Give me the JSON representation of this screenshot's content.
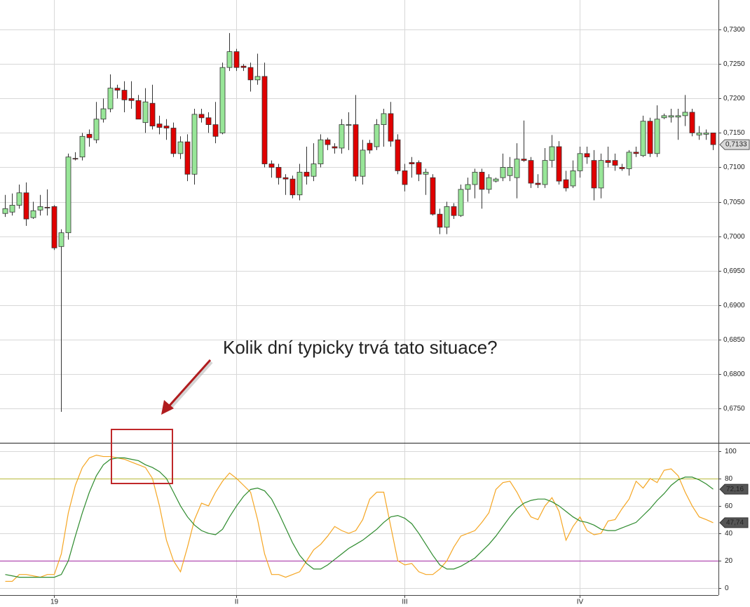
{
  "chart_data": {
    "type": "candlestick",
    "annotation": "Kolik dní typicky trvá tato situace?",
    "categories": [
      null,
      null,
      null,
      null,
      null,
      null,
      null,
      "19",
      null,
      null,
      null,
      null,
      null,
      null,
      null,
      null,
      null,
      null,
      null,
      null,
      null,
      null,
      null,
      null,
      null,
      null,
      null,
      null,
      null,
      null,
      null,
      null,
      null,
      "II",
      null,
      null,
      null,
      null,
      null,
      null,
      null,
      null,
      null,
      null,
      null,
      null,
      null,
      null,
      null,
      null,
      null,
      null,
      null,
      null,
      null,
      null,
      null,
      "III",
      null,
      null,
      null,
      null,
      null,
      null,
      null,
      null,
      null,
      null,
      null,
      null,
      null,
      null,
      null,
      null,
      null,
      null,
      null,
      null,
      null,
      null,
      null,
      null,
      "IV",
      null,
      null,
      null,
      null,
      null,
      null,
      null,
      null,
      null,
      null,
      null,
      null,
      null,
      null,
      null,
      null,
      null,
      null,
      null
    ],
    "open": [
      0.7033,
      0.7035,
      0.7045,
      0.7063,
      0.7027,
      0.7038,
      0.7042,
      0.7043,
      0.6985,
      0.7005,
      0.7113,
      0.7115,
      0.7148,
      0.714,
      0.717,
      0.7185,
      0.7215,
      0.7212,
      0.72,
      0.7197,
      0.7165,
      0.7193,
      0.7163,
      0.716,
      0.7157,
      0.712,
      0.7137,
      0.709,
      0.7177,
      0.7172,
      0.7162,
      0.715,
      0.7245,
      0.7268,
      0.7247,
      0.7245,
      0.7227,
      0.7232,
      0.7105,
      0.71,
      0.7085,
      0.7083,
      0.706,
      0.7093,
      0.7087,
      0.7105,
      0.714,
      0.713,
      0.7128,
      0.7161,
      0.7162,
      0.7087,
      0.7135,
      0.713,
      0.7162,
      0.7178,
      0.714,
      0.7095,
      0.7107,
      0.7107,
      0.709,
      0.7085,
      0.7032,
      0.7013,
      0.7043,
      0.703,
      0.7068,
      0.7075,
      0.7093,
      0.7068,
      0.708,
      0.7085,
      0.7088,
      0.7085,
      0.7112,
      0.711,
      0.7077,
      0.7075,
      0.711,
      0.713,
      0.7082,
      0.7073,
      0.7095,
      0.712,
      0.711,
      0.707,
      0.711,
      0.711,
      0.71,
      0.7098,
      0.7122,
      0.7117,
      0.7167,
      0.712,
      0.7172,
      0.7173,
      0.7173,
      0.7175,
      0.718,
      0.7147,
      0.7148,
      0.715
    ],
    "high": [
      0.706,
      0.7062,
      0.7075,
      0.7078,
      0.705,
      0.706,
      0.7068,
      0.7045,
      0.701,
      0.712,
      0.7122,
      0.715,
      0.7155,
      0.7195,
      0.72,
      0.7235,
      0.722,
      0.7225,
      0.7225,
      0.7205,
      0.7215,
      0.722,
      0.7175,
      0.717,
      0.7165,
      0.7145,
      0.7148,
      0.7185,
      0.7185,
      0.718,
      0.7195,
      0.7252,
      0.7295,
      0.7272,
      0.725,
      0.7252,
      0.7265,
      0.7252,
      0.711,
      0.7105,
      0.709,
      0.7088,
      0.7105,
      0.713,
      0.7135,
      0.7148,
      0.7143,
      0.7135,
      0.717,
      0.718,
      0.7205,
      0.714,
      0.714,
      0.717,
      0.7185,
      0.7195,
      0.7148,
      0.7105,
      0.7115,
      0.711,
      0.7098,
      0.709,
      0.704,
      0.705,
      0.7048,
      0.7075,
      0.7085,
      0.7098,
      0.7098,
      0.709,
      0.7085,
      0.712,
      0.7115,
      0.7135,
      0.7168,
      0.7115,
      0.709,
      0.7128,
      0.7147,
      0.7138,
      0.7095,
      0.711,
      0.713,
      0.713,
      0.7125,
      0.712,
      0.713,
      0.712,
      0.7105,
      0.7125,
      0.713,
      0.7175,
      0.7172,
      0.719,
      0.7178,
      0.7185,
      0.7185,
      0.7205,
      0.7185,
      0.716,
      0.7155,
      0.715
    ],
    "low": [
      0.7028,
      0.703,
      0.704,
      0.7015,
      0.7025,
      0.703,
      0.703,
      0.698,
      0.6745,
      0.6995,
      0.711,
      0.711,
      0.713,
      0.7135,
      0.7165,
      0.718,
      0.72,
      0.718,
      0.7185,
      0.717,
      0.715,
      0.7155,
      0.7148,
      0.714,
      0.7115,
      0.7112,
      0.708,
      0.7075,
      0.7165,
      0.715,
      0.7135,
      0.7148,
      0.724,
      0.724,
      0.724,
      0.721,
      0.722,
      0.71,
      0.7085,
      0.7075,
      0.706,
      0.7055,
      0.7052,
      0.7075,
      0.708,
      0.71,
      0.7125,
      0.712,
      0.712,
      0.7125,
      0.708,
      0.7075,
      0.712,
      0.7125,
      0.713,
      0.713,
      0.709,
      0.7065,
      0.7085,
      0.708,
      0.706,
      0.703,
      0.7003,
      0.7003,
      0.7025,
      0.7028,
      0.705,
      0.7055,
      0.704,
      0.7062,
      0.7078,
      0.708,
      0.708,
      0.7055,
      0.7108,
      0.707,
      0.707,
      0.707,
      0.71,
      0.7075,
      0.7065,
      0.707,
      0.7085,
      0.7105,
      0.7052,
      0.7055,
      0.71,
      0.7095,
      0.7095,
      0.7088,
      0.7115,
      0.7115,
      0.7115,
      0.7115,
      0.717,
      0.7165,
      0.714,
      0.716,
      0.7145,
      0.714,
      0.714,
      0.7125
    ],
    "close": [
      0.704,
      0.7045,
      0.7063,
      0.7025,
      0.7037,
      0.7043,
      0.7041,
      0.6983,
      0.7005,
      0.7115,
      0.7112,
      0.7145,
      0.7143,
      0.717,
      0.7185,
      0.7215,
      0.7212,
      0.7198,
      0.7197,
      0.717,
      0.7195,
      0.716,
      0.7158,
      0.7157,
      0.712,
      0.7137,
      0.709,
      0.7177,
      0.7172,
      0.7162,
      0.7145,
      0.7245,
      0.7268,
      0.7245,
      0.7245,
      0.7227,
      0.7232,
      0.7105,
      0.71,
      0.7085,
      0.7083,
      0.706,
      0.7093,
      0.7087,
      0.7105,
      0.714,
      0.7133,
      0.7128,
      0.7162,
      0.7162,
      0.7087,
      0.7125,
      0.7125,
      0.7162,
      0.7178,
      0.7138,
      0.7095,
      0.7075,
      0.7105,
      0.709,
      0.7093,
      0.7032,
      0.7013,
      0.7043,
      0.703,
      0.7068,
      0.7075,
      0.7093,
      0.7068,
      0.7085,
      0.7083,
      0.71,
      0.71,
      0.7112,
      0.711,
      0.7077,
      0.7075,
      0.711,
      0.713,
      0.708,
      0.707,
      0.7095,
      0.712,
      0.7115,
      0.707,
      0.711,
      0.7107,
      0.7103,
      0.7098,
      0.7122,
      0.712,
      0.7167,
      0.712,
      0.717,
      0.7175,
      0.7175,
      0.7175,
      0.718,
      0.715,
      0.715,
      0.715,
      0.7133
    ],
    "close_labels": [
      null,
      null,
      null,
      null,
      null,
      null,
      null,
      null,
      null,
      null,
      null,
      null,
      null,
      null,
      null,
      null,
      null,
      null,
      null,
      null,
      null,
      null,
      null,
      null,
      null,
      null,
      null,
      null,
      null,
      null,
      null,
      null,
      null,
      null,
      null,
      null,
      null,
      null,
      null,
      null,
      null,
      null,
      null,
      null,
      null,
      null,
      null,
      null,
      null,
      null,
      null,
      null,
      null,
      null,
      null,
      null,
      null,
      null,
      null,
      null,
      null,
      null,
      null,
      null,
      null,
      null,
      null,
      null,
      null,
      null,
      null,
      null,
      null,
      null,
      null,
      null,
      null,
      null,
      null,
      null,
      null,
      null,
      null,
      null,
      null,
      null,
      null,
      null,
      null,
      null,
      null,
      null,
      null,
      null,
      null,
      null,
      null,
      null,
      null,
      null,
      null,
      "0,7133"
    ],
    "up_color": "#98e698",
    "down_color": "#e00000",
    "ylim": [
      0.6701,
      0.7343
    ],
    "yticks": [
      {
        "value": 0.675,
        "label": "0,6750"
      },
      {
        "value": 0.68,
        "label": "0,6800"
      },
      {
        "value": 0.685,
        "label": "0,6850"
      },
      {
        "value": 0.69,
        "label": "0,6900"
      },
      {
        "value": 0.695,
        "label": "0,6950"
      },
      {
        "value": 0.7,
        "label": "0,7000"
      },
      {
        "value": 0.705,
        "label": "0,7050"
      },
      {
        "value": 0.71,
        "label": "0,7100"
      },
      {
        "value": 0.715,
        "label": "0,7150"
      },
      {
        "value": 0.72,
        "label": "0,7200"
      },
      {
        "value": 0.725,
        "label": "0,7250"
      },
      {
        "value": 0.73,
        "label": "0,7300"
      }
    ],
    "grid": true,
    "oscillator": {
      "type": "line",
      "ylim": [
        -5,
        105.5
      ],
      "yticks": [
        0,
        20,
        40,
        60,
        80,
        100
      ],
      "levels": [
        {
          "value": 80,
          "color": "#b8ba3a"
        },
        {
          "value": 20,
          "color": "#a32aa3"
        }
      ],
      "series": [
        {
          "color": "#f5a623",
          "values": [
            5,
            5,
            10,
            10,
            9,
            8,
            10,
            10,
            25,
            55,
            75,
            88,
            95,
            97,
            96,
            96,
            95,
            94,
            92,
            90,
            88,
            80,
            60,
            35,
            20,
            12,
            30,
            50,
            62,
            60,
            70,
            78,
            84,
            80,
            75,
            70,
            50,
            25,
            10,
            10,
            8,
            10,
            12,
            20,
            28,
            32,
            38,
            45,
            42,
            40,
            42,
            50,
            65,
            70,
            70,
            45,
            20,
            17,
            18,
            12,
            10,
            10,
            14,
            20,
            30,
            38,
            40,
            42,
            48,
            55,
            72,
            77,
            78,
            70,
            60,
            52,
            50,
            60,
            66,
            56,
            35,
            45,
            52,
            42,
            39,
            40,
            49,
            50,
            58,
            65,
            78,
            73,
            80,
            77,
            86,
            87,
            82,
            70,
            60,
            52,
            50,
            47.74
          ],
          "value_labels": [
            null,
            null,
            null,
            null,
            null,
            null,
            null,
            null,
            null,
            null,
            null,
            null,
            null,
            null,
            null,
            null,
            null,
            null,
            null,
            null,
            null,
            null,
            null,
            null,
            null,
            null,
            null,
            null,
            null,
            null,
            null,
            null,
            null,
            null,
            null,
            null,
            null,
            null,
            null,
            null,
            null,
            null,
            null,
            null,
            null,
            null,
            null,
            null,
            null,
            null,
            null,
            null,
            null,
            null,
            null,
            null,
            null,
            null,
            null,
            null,
            null,
            null,
            null,
            null,
            null,
            null,
            null,
            null,
            null,
            null,
            null,
            null,
            null,
            null,
            null,
            null,
            null,
            null,
            null,
            null,
            null,
            null,
            null,
            null,
            null,
            null,
            null,
            null,
            null,
            null,
            null,
            null,
            null,
            null,
            null,
            null,
            null,
            null,
            null,
            null,
            null,
            "47,74"
          ]
        },
        {
          "color": "#2e8b2e",
          "values": [
            10,
            9,
            8,
            8,
            8,
            8,
            8,
            8,
            10,
            20,
            38,
            55,
            70,
            82,
            90,
            94,
            95,
            95,
            94,
            93,
            90,
            88,
            85,
            80,
            70,
            60,
            52,
            46,
            42,
            40,
            39,
            43,
            52,
            60,
            67,
            72,
            73,
            71,
            65,
            55,
            44,
            33,
            24,
            18,
            14,
            14,
            17,
            21,
            25,
            29,
            32,
            35,
            39,
            43,
            48,
            52,
            53,
            51,
            47,
            40,
            32,
            24,
            17,
            14,
            14,
            16,
            19,
            22,
            27,
            32,
            38,
            45,
            52,
            58,
            62,
            64,
            65,
            65,
            63,
            60,
            56,
            52,
            49,
            48,
            46,
            43,
            42,
            42,
            44,
            46,
            48,
            53,
            58,
            64,
            69,
            75,
            79,
            81,
            81,
            79,
            76,
            72.16
          ],
          "value_labels": [
            null,
            null,
            null,
            null,
            null,
            null,
            null,
            null,
            null,
            null,
            null,
            null,
            null,
            null,
            null,
            null,
            null,
            null,
            null,
            null,
            null,
            null,
            null,
            null,
            null,
            null,
            null,
            null,
            null,
            null,
            null,
            null,
            null,
            null,
            null,
            null,
            null,
            null,
            null,
            null,
            null,
            null,
            null,
            null,
            null,
            null,
            null,
            null,
            null,
            null,
            null,
            null,
            null,
            null,
            null,
            null,
            null,
            null,
            null,
            null,
            null,
            null,
            null,
            null,
            null,
            null,
            null,
            null,
            null,
            null,
            null,
            null,
            null,
            null,
            null,
            null,
            null,
            null,
            null,
            null,
            null,
            null,
            null,
            null,
            null,
            null,
            null,
            null,
            null,
            null,
            null,
            null,
            null,
            null,
            null,
            null,
            null,
            null,
            null,
            null,
            null,
            "72,16"
          ]
        }
      ]
    }
  }
}
